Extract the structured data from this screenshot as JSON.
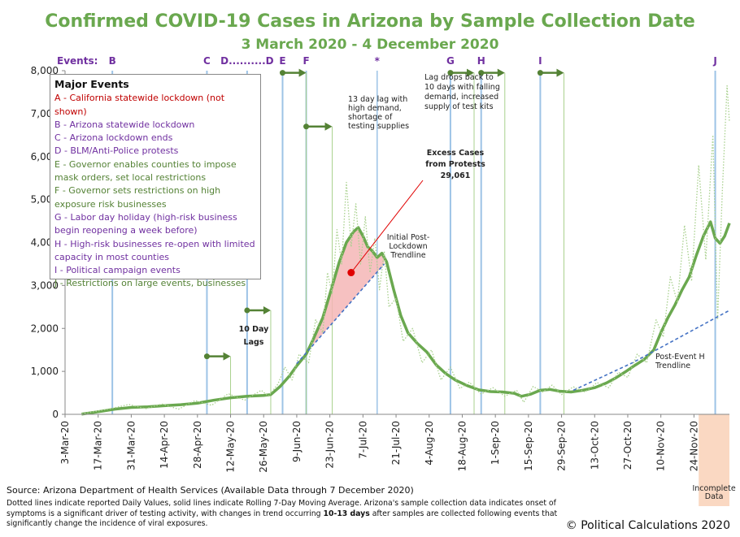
{
  "chart_data": {
    "type": "line",
    "title": "Confirmed COVID-19 Cases in Arizona by Sample Collection Date",
    "subtitle": "3 March 2020 - 4 December 2020",
    "ylim": [
      0,
      8000
    ],
    "y_ticks": [
      "0",
      "1,000",
      "2,000",
      "3,000",
      "4,000",
      "5,000",
      "6,000",
      "7,000",
      "8,000"
    ],
    "y_tick_values": [
      0,
      1000,
      2000,
      3000,
      4000,
      5000,
      6000,
      7000,
      8000
    ],
    "x_start_day": 0,
    "x_end_day": 281,
    "x_ticks": [
      {
        "label": "3-Mar-20",
        "day": 0
      },
      {
        "label": "17-Mar-20",
        "day": 14
      },
      {
        "label": "31-Mar-20",
        "day": 28
      },
      {
        "label": "14-Apr-20",
        "day": 42
      },
      {
        "label": "28-Apr-20",
        "day": 56
      },
      {
        "label": "12-May-20",
        "day": 70
      },
      {
        "label": "26-May-20",
        "day": 84
      },
      {
        "label": "9-Jun-20",
        "day": 98
      },
      {
        "label": "23-Jun-20",
        "day": 112
      },
      {
        "label": "7-Jul-20",
        "day": 126
      },
      {
        "label": "21-Jul-20",
        "day": 140
      },
      {
        "label": "4-Aug-20",
        "day": 154
      },
      {
        "label": "18-Aug-20",
        "day": 168
      },
      {
        "label": "1-Sep-20",
        "day": 182
      },
      {
        "label": "15-Sep-20",
        "day": 196
      },
      {
        "label": "29-Sep-20",
        "day": 210
      },
      {
        "label": "13-Oct-20",
        "day": 224
      },
      {
        "label": "27-Oct-20",
        "day": 238
      },
      {
        "label": "10-Nov-20",
        "day": 252
      },
      {
        "label": "24-Nov-20",
        "day": 266
      }
    ],
    "series": [
      {
        "name": "Rolling 7-Day Moving Average",
        "style": "solid",
        "color": "#6aa84f",
        "points": [
          [
            7,
            5
          ],
          [
            14,
            60
          ],
          [
            21,
            120
          ],
          [
            28,
            160
          ],
          [
            35,
            175
          ],
          [
            42,
            200
          ],
          [
            49,
            225
          ],
          [
            56,
            260
          ],
          [
            63,
            330
          ],
          [
            70,
            385
          ],
          [
            77,
            420
          ],
          [
            84,
            440
          ],
          [
            87,
            460
          ],
          [
            91,
            650
          ],
          [
            95,
            900
          ],
          [
            98,
            1130
          ],
          [
            102,
            1400
          ],
          [
            105,
            1750
          ],
          [
            109,
            2250
          ],
          [
            112,
            2800
          ],
          [
            116,
            3550
          ],
          [
            119,
            4000
          ],
          [
            122,
            4250
          ],
          [
            124,
            4350
          ],
          [
            126,
            4150
          ],
          [
            128,
            3900
          ],
          [
            130,
            3800
          ],
          [
            132,
            3650
          ],
          [
            134,
            3750
          ],
          [
            136,
            3550
          ],
          [
            139,
            2900
          ],
          [
            142,
            2300
          ],
          [
            145,
            1900
          ],
          [
            149,
            1650
          ],
          [
            153,
            1450
          ],
          [
            157,
            1150
          ],
          [
            161,
            950
          ],
          [
            165,
            800
          ],
          [
            170,
            670
          ],
          [
            175,
            570
          ],
          [
            180,
            530
          ],
          [
            185,
            520
          ],
          [
            190,
            490
          ],
          [
            193,
            420
          ],
          [
            197,
            470
          ],
          [
            201,
            560
          ],
          [
            205,
            580
          ],
          [
            209,
            540
          ],
          [
            214,
            520
          ],
          [
            219,
            560
          ],
          [
            224,
            620
          ],
          [
            229,
            730
          ],
          [
            233,
            850
          ],
          [
            237,
            990
          ],
          [
            241,
            1140
          ],
          [
            245,
            1280
          ],
          [
            249,
            1500
          ],
          [
            252,
            1900
          ],
          [
            255,
            2250
          ],
          [
            258,
            2550
          ],
          [
            261,
            2900
          ],
          [
            264,
            3200
          ],
          [
            267,
            3700
          ],
          [
            270,
            4150
          ],
          [
            273,
            4480
          ],
          [
            275,
            4100
          ],
          [
            277,
            3980
          ],
          [
            279,
            4150
          ],
          [
            281,
            4450
          ]
        ]
      },
      {
        "name": "Daily Values",
        "style": "dotted",
        "color": "#a8d08d",
        "points": [
          [
            7,
            10
          ],
          [
            20,
            140
          ],
          [
            27,
            230
          ],
          [
            34,
            130
          ],
          [
            41,
            240
          ],
          [
            48,
            120
          ],
          [
            55,
            320
          ],
          [
            62,
            210
          ],
          [
            69,
            480
          ],
          [
            76,
            330
          ],
          [
            83,
            560
          ],
          [
            86,
            420
          ],
          [
            90,
            700
          ],
          [
            93,
            1100
          ],
          [
            96,
            800
          ],
          [
            99,
            1400
          ],
          [
            103,
            1200
          ],
          [
            106,
            2200
          ],
          [
            109,
            1900
          ],
          [
            111,
            3300
          ],
          [
            113,
            2800
          ],
          [
            115,
            4300
          ],
          [
            117,
            3500
          ],
          [
            119,
            5400
          ],
          [
            121,
            3900
          ],
          [
            123,
            4900
          ],
          [
            125,
            3500
          ],
          [
            127,
            4600
          ],
          [
            129,
            3300
          ],
          [
            131,
            4100
          ],
          [
            133,
            2900
          ],
          [
            135,
            3800
          ],
          [
            137,
            2500
          ],
          [
            140,
            2700
          ],
          [
            143,
            1700
          ],
          [
            147,
            2000
          ],
          [
            151,
            1200
          ],
          [
            155,
            1500
          ],
          [
            159,
            800
          ],
          [
            163,
            1100
          ],
          [
            167,
            600
          ],
          [
            171,
            750
          ],
          [
            176,
            470
          ],
          [
            181,
            620
          ],
          [
            186,
            420
          ],
          [
            191,
            560
          ],
          [
            194,
            280
          ],
          [
            198,
            650
          ],
          [
            202,
            520
          ],
          [
            206,
            680
          ],
          [
            210,
            460
          ],
          [
            215,
            640
          ],
          [
            220,
            520
          ],
          [
            225,
            740
          ],
          [
            230,
            620
          ],
          [
            234,
            980
          ],
          [
            238,
            860
          ],
          [
            242,
            1400
          ],
          [
            246,
            1200
          ],
          [
            250,
            2200
          ],
          [
            253,
            1800
          ],
          [
            256,
            3200
          ],
          [
            259,
            2600
          ],
          [
            262,
            4400
          ],
          [
            265,
            3100
          ],
          [
            268,
            5800
          ],
          [
            271,
            3600
          ],
          [
            274,
            6500
          ],
          [
            276,
            2200
          ],
          [
            278,
            5200
          ],
          [
            280,
            7650
          ],
          [
            281,
            6800
          ]
        ]
      },
      {
        "name": "Initial Post-Lockdown Trendline",
        "style": "dashed",
        "color": "#4472c4",
        "points": [
          [
            98,
            1180
          ],
          [
            135,
            3500
          ]
        ]
      },
      {
        "name": "Post-Event H Trendline",
        "style": "dashed",
        "color": "#4472c4",
        "points": [
          [
            215,
            560
          ],
          [
            240,
            1200
          ],
          [
            281,
            2420
          ]
        ]
      }
    ],
    "event_lines": [
      {
        "label": "B",
        "day": 20
      },
      {
        "label": "C",
        "day": 60
      },
      {
        "label": "D..........D",
        "day": 77
      },
      {
        "label": "E",
        "day": 92
      },
      {
        "label": "F",
        "day": 102
      },
      {
        "label": "*",
        "day": 132
      },
      {
        "label": "G",
        "day": 163
      },
      {
        "label": "H",
        "day": 176
      },
      {
        "label": "I",
        "day": 201
      },
      {
        "label": "J",
        "day": 275
      }
    ],
    "lag_arrows": [
      {
        "from_day": 60,
        "to_day": 70,
        "value": 1350
      },
      {
        "from_day": 77,
        "to_day": 87,
        "value": 2420
      },
      {
        "from_day": 92,
        "to_day": 102,
        "value": 7950
      },
      {
        "from_day": 102,
        "to_day": 113,
        "value": 6700
      },
      {
        "from_day": 163,
        "to_day": 173,
        "value": 7950
      },
      {
        "from_day": 176,
        "to_day": 186,
        "value": 7950
      },
      {
        "from_day": 201,
        "to_day": 211,
        "value": 7950
      }
    ],
    "excess_area": {
      "from_day": 105,
      "to_day": 135,
      "marker_day": 121,
      "marker_value": 3300
    },
    "incomplete_region": {
      "from_day": 268,
      "to_day": 281
    },
    "events_label": "Events:",
    "annotations": {
      "lag13": [
        "13 day lag with",
        "high demand,",
        "shortage of",
        "testing supplies"
      ],
      "lag10": [
        "Lag drops back to",
        "10 days with falling",
        "demand, increased",
        "supply of test kits"
      ],
      "excess": [
        "Excess  Cases",
        "from Protests",
        "29,061"
      ],
      "trend1": [
        "Initial Post-",
        "Lockdown",
        "Trendline"
      ],
      "trend2": [
        "Post-Event H",
        "Trendline"
      ],
      "ten_day": [
        "10 Day",
        "Lags"
      ],
      "incomplete": [
        "Incomplete",
        "Data"
      ]
    }
  },
  "legend": {
    "title": "Major Events",
    "items": [
      {
        "text": "A - California statewide lockdown (not shown)",
        "color": "#c00000"
      },
      {
        "text": "B - Arizona statewide lockdown",
        "color": "#7030a0"
      },
      {
        "text": "C - Arizona lockdown ends",
        "color": "#7030a0"
      },
      {
        "text": "D - BLM/Anti-Police protests",
        "color": "#7030a0"
      },
      {
        "text": "E - Governor enables counties to  impose mask orders, set local restrictions",
        "color": "#548235"
      },
      {
        "text": "F - Governor  sets restrictions on high exposure risk businesses",
        "color": "#548235"
      },
      {
        "text": "G - Labor day holiday (high-risk business begin reopening a week  before)",
        "color": "#7030a0"
      },
      {
        "text": "H - High-risk businesses re-open with limited capacity in most counties",
        "color": "#7030a0"
      },
      {
        "text": "I - Political campaign events",
        "color": "#7030a0"
      },
      {
        "text": "J - Restrictions on large events, businesses",
        "color": "#548235"
      }
    ]
  },
  "footer": {
    "source": "Source: Arizona Department of Health Services (Available Data through 7 December 2020)",
    "note_a": "Dotted lines indicate reported Daily Values, solid lines indicate Rolling 7-Day Moving Average. Arizona's sample collection data indicates onset of symptoms is a significant driver of testing activity, with changes in trend occurring ",
    "note_bold": "10-13 days",
    "note_b": " after samples are collected following events that significantly change the incidence of viral exposures.",
    "copyright": "© Political Calculations 2020"
  }
}
